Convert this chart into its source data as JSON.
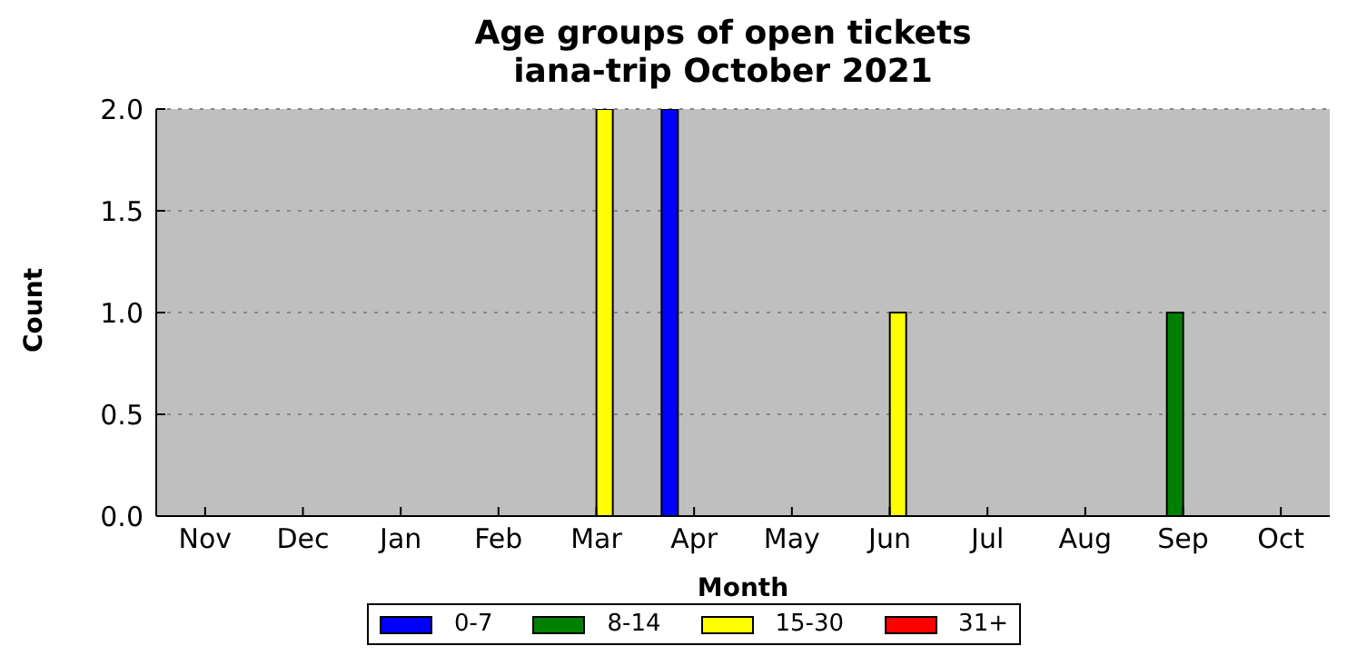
{
  "chart_data": {
    "type": "bar",
    "title": "Age groups of open tickets",
    "subtitle": "iana-trip October 2021",
    "xlabel": "Month",
    "ylabel": "Count",
    "categories": [
      "Nov",
      "Dec",
      "Jan",
      "Feb",
      "Mar",
      "Apr",
      "May",
      "Jun",
      "Jul",
      "Aug",
      "Sep",
      "Oct"
    ],
    "series": [
      {
        "name": "0-7",
        "color": "#0000ff",
        "values": [
          0,
          0,
          0,
          0,
          0,
          2,
          0,
          0,
          0,
          0,
          0,
          0
        ]
      },
      {
        "name": "8-14",
        "color": "#008000",
        "values": [
          0,
          0,
          0,
          0,
          0,
          0,
          0,
          0,
          0,
          0,
          1,
          0
        ]
      },
      {
        "name": "15-30",
        "color": "#ffff00",
        "values": [
          0,
          0,
          0,
          0,
          2,
          0,
          0,
          1,
          0,
          0,
          0,
          0
        ]
      },
      {
        "name": "31+",
        "color": "#ff0000",
        "values": [
          0,
          0,
          0,
          0,
          0,
          0,
          0,
          0,
          0,
          0,
          0,
          0
        ]
      }
    ],
    "ylim": [
      0,
      2
    ],
    "yticks": [
      {
        "value": 0,
        "label": "0.0"
      },
      {
        "value": 0.5,
        "label": "0.5"
      },
      {
        "value": 1,
        "label": "1.0"
      },
      {
        "value": 1.5,
        "label": "1.5"
      },
      {
        "value": 2,
        "label": "2.0"
      }
    ],
    "grid": "y",
    "legend": "bottom"
  }
}
